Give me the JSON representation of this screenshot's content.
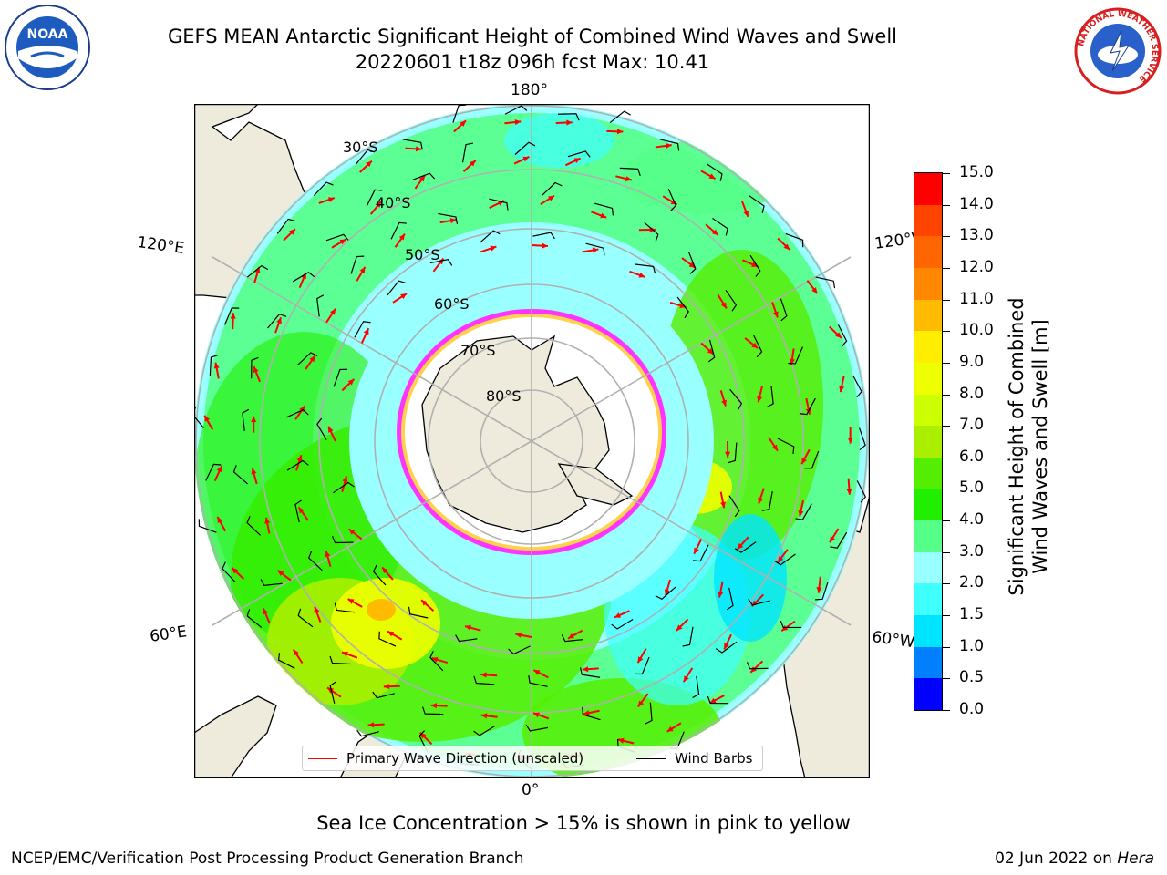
{
  "header": {
    "title_line1": "GEFS MEAN Antarctic Significant Height of Combined Wind Waves and Swell",
    "title_line2": "20220601 t18z 096h fcst   Max: 10.41"
  },
  "logos": {
    "left": "noaa-logo",
    "right": "national-weather-service-logo",
    "left_text": "NOAA",
    "right_ring_text": "NATIONAL WEATHER SERVICE"
  },
  "map": {
    "projection": "south-polar-stereographic",
    "longitude_labels": {
      "top": "180°",
      "bottom": "0°",
      "upper_left": "120°E",
      "upper_right": "120°W",
      "lower_left": "60°E",
      "lower_right": "60°W"
    },
    "latitude_labels": [
      "30°S",
      "40°S",
      "50°S",
      "60°S",
      "70°S",
      "80°S"
    ],
    "colors": {
      "ocean_background": "#ffffff",
      "land": "#efebdc",
      "ice_edge": "#ff33ff",
      "ice_inner": "#ffd24d",
      "wave_arrow": "#ff0000",
      "wind_barb": "#000000",
      "graticule": "#b0b0b0"
    }
  },
  "legend": {
    "primary_wave_label": "Primary Wave Direction (unscaled)",
    "wind_barbs_label": "Wind Barbs",
    "primary_wave_color": "#ff0000",
    "wind_barbs_color": "#000000"
  },
  "colorbar": {
    "title_line1": "Significant Height of Combined",
    "title_line2": "Wind Waves and Swell [m]",
    "ticks": [
      "0.0",
      "0.5",
      "1.0",
      "1.5",
      "2.0",
      "3.0",
      "4.0",
      "5.0",
      "6.0",
      "7.0",
      "8.0",
      "9.0",
      "10.0",
      "11.0",
      "12.0",
      "13.0",
      "14.0",
      "15.0"
    ],
    "colors": [
      "#0000ff",
      "#0080ff",
      "#00e5ff",
      "#40ffff",
      "#99ffff",
      "#55ff88",
      "#22ee00",
      "#55ee00",
      "#aaee00",
      "#ccff00",
      "#eeff00",
      "#ffee00",
      "#ffbb00",
      "#ff8800",
      "#ff6600",
      "#ff4400",
      "#ff0000"
    ]
  },
  "notes": {
    "ice_note": "Sea Ice Concentration > 15% is shown in pink to yellow",
    "footer_left": "NCEP/EMC/Verification Post Processing Product Generation Branch",
    "footer_date": "02 Jun 2022 on ",
    "footer_system": "Hera"
  }
}
